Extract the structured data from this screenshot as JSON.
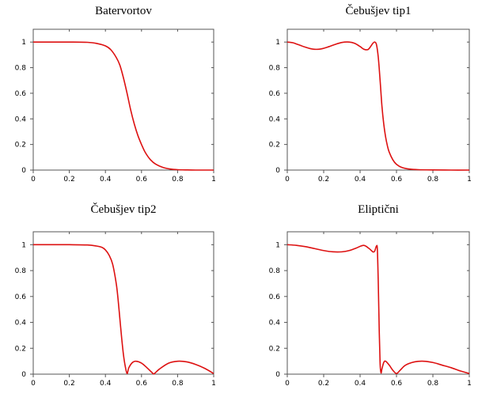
{
  "chart_data": [
    {
      "type": "line",
      "title": "Batervortov",
      "xlabel": "",
      "ylabel": "",
      "xlim": [
        0,
        1
      ],
      "ylim": [
        0,
        1.1
      ],
      "xticks": [
        "0",
        "0.2",
        "0.4",
        "0.6",
        "0.8",
        "1"
      ],
      "yticks": [
        "0",
        "0.2",
        "0.4",
        "0.6",
        "0.8",
        "1"
      ],
      "grid": false,
      "legend": "none",
      "line_color": "#dd1111",
      "series": [
        {
          "x": [
            0,
            0.1,
            0.2,
            0.3,
            0.35,
            0.4,
            0.43,
            0.46,
            0.48,
            0.5,
            0.52,
            0.54,
            0.56,
            0.58,
            0.6,
            0.62,
            0.65,
            0.68,
            0.72,
            0.76,
            0.8,
            0.85,
            0.9,
            1
          ],
          "y": [
            1,
            1,
            1,
            0.998,
            0.99,
            0.97,
            0.94,
            0.88,
            0.82,
            0.72,
            0.6,
            0.47,
            0.36,
            0.27,
            0.2,
            0.14,
            0.08,
            0.045,
            0.02,
            0.008,
            0.003,
            0.001,
            0,
            0
          ]
        }
      ]
    },
    {
      "type": "line",
      "title": "Čebušjev tip1",
      "xlabel": "",
      "ylabel": "",
      "xlim": [
        0,
        1
      ],
      "ylim": [
        0,
        1.1
      ],
      "xticks": [
        "0",
        "0.2",
        "0.4",
        "0.6",
        "0.8",
        "1"
      ],
      "yticks": [
        "0",
        "0.2",
        "0.4",
        "0.6",
        "0.8",
        "1"
      ],
      "grid": false,
      "legend": "none",
      "line_color": "#dd1111",
      "series": [
        {
          "x": [
            0,
            0.03,
            0.06,
            0.1,
            0.14,
            0.18,
            0.22,
            0.26,
            0.3,
            0.34,
            0.37,
            0.4,
            0.42,
            0.44,
            0.45,
            0.46,
            0.47,
            0.48,
            0.49,
            0.5,
            0.51,
            0.52,
            0.53,
            0.54,
            0.55,
            0.56,
            0.58,
            0.6,
            0.63,
            0.67,
            0.72,
            0.8,
            0.9,
            1
          ],
          "y": [
            1,
            0.995,
            0.98,
            0.96,
            0.945,
            0.945,
            0.96,
            0.98,
            0.997,
            1,
            0.99,
            0.965,
            0.945,
            0.94,
            0.95,
            0.97,
            0.99,
            1,
            0.98,
            0.88,
            0.7,
            0.5,
            0.36,
            0.26,
            0.19,
            0.14,
            0.08,
            0.045,
            0.02,
            0.008,
            0.003,
            0.001,
            0,
            0
          ]
        }
      ]
    },
    {
      "type": "line",
      "title": "Čebušjev tip2",
      "xlabel": "",
      "ylabel": "",
      "xlim": [
        0,
        1
      ],
      "ylim": [
        0,
        1.1
      ],
      "xticks": [
        "0",
        "0.2",
        "0.4",
        "0.6",
        "0.8",
        "1"
      ],
      "yticks": [
        "0",
        "0.2",
        "0.4",
        "0.6",
        "0.8",
        "1"
      ],
      "grid": false,
      "legend": "none",
      "line_color": "#dd1111",
      "series": [
        {
          "x": [
            0,
            0.1,
            0.2,
            0.3,
            0.35,
            0.38,
            0.4,
            0.42,
            0.44,
            0.46,
            0.47,
            0.48,
            0.49,
            0.5,
            0.51,
            0.52,
            0.53,
            0.55,
            0.57,
            0.6,
            0.63,
            0.66,
            0.67,
            0.7,
            0.75,
            0.8,
            0.85,
            0.9,
            0.95,
            1
          ],
          "y": [
            1,
            1,
            1,
            0.998,
            0.99,
            0.98,
            0.96,
            0.92,
            0.85,
            0.7,
            0.58,
            0.43,
            0.28,
            0.15,
            0.06,
            0.005,
            0.05,
            0.09,
            0.1,
            0.085,
            0.05,
            0.01,
            0.003,
            0.04,
            0.085,
            0.1,
            0.095,
            0.075,
            0.045,
            0.005
          ]
        }
      ]
    },
    {
      "type": "line",
      "title": "Eliptični",
      "xlabel": "",
      "ylabel": "",
      "xlim": [
        0,
        1
      ],
      "ylim": [
        0,
        1.1
      ],
      "xticks": [
        "0",
        "0.2",
        "0.4",
        "0.6",
        "0.8",
        "1"
      ],
      "yticks": [
        "0",
        "0.2",
        "0.4",
        "0.6",
        "0.8",
        "1"
      ],
      "grid": false,
      "legend": "none",
      "line_color": "#dd1111",
      "series": [
        {
          "x": [
            0,
            0.05,
            0.1,
            0.15,
            0.2,
            0.25,
            0.3,
            0.34,
            0.38,
            0.42,
            0.45,
            0.47,
            0.48,
            0.49,
            0.495,
            0.5,
            0.505,
            0.51,
            0.515,
            0.52,
            0.53,
            0.54,
            0.56,
            0.58,
            0.6,
            0.62,
            0.65,
            0.7,
            0.75,
            0.8,
            0.85,
            0.9,
            0.95,
            1
          ],
          "y": [
            1,
            0.995,
            0.985,
            0.97,
            0.955,
            0.945,
            0.945,
            0.955,
            0.975,
            0.995,
            0.97,
            0.945,
            0.95,
            0.99,
            0.96,
            0.7,
            0.35,
            0.08,
            0.01,
            0.04,
            0.09,
            0.1,
            0.07,
            0.03,
            0.005,
            0.03,
            0.07,
            0.095,
            0.1,
            0.09,
            0.07,
            0.05,
            0.025,
            0.005
          ]
        }
      ]
    }
  ]
}
